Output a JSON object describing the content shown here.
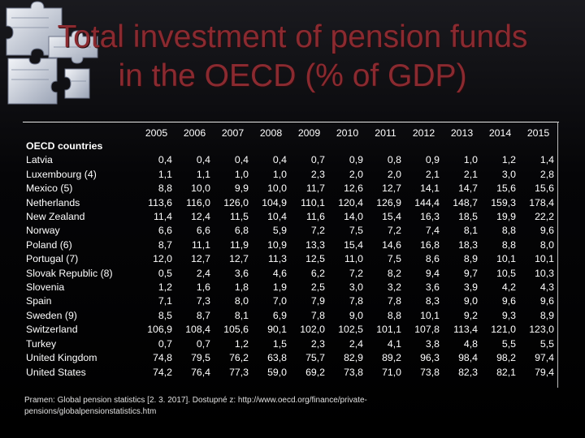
{
  "title": "Total investment of pension funds in the OECD (% of GDP)",
  "table": {
    "group_label": "OECD countries",
    "years": [
      "2005",
      "2006",
      "2007",
      "2008",
      "2009",
      "2010",
      "2011",
      "2012",
      "2013",
      "2014",
      "2015"
    ],
    "rows": [
      {
        "country": "Latvia",
        "values": [
          "0,4",
          "0,4",
          "0,4",
          "0,4",
          "0,7",
          "0,9",
          "0,8",
          "0,9",
          "1,0",
          "1,2",
          "1,4"
        ]
      },
      {
        "country": "Luxembourg (4)",
        "values": [
          "1,1",
          "1,1",
          "1,0",
          "1,0",
          "2,3",
          "2,0",
          "2,0",
          "2,1",
          "2,1",
          "3,0",
          "2,8"
        ]
      },
      {
        "country": "Mexico (5)",
        "values": [
          "8,8",
          "10,0",
          "9,9",
          "10,0",
          "11,7",
          "12,6",
          "12,7",
          "14,1",
          "14,7",
          "15,6",
          "15,6"
        ]
      },
      {
        "country": "Netherlands",
        "values": [
          "113,6",
          "116,0",
          "126,0",
          "104,9",
          "110,1",
          "120,4",
          "126,9",
          "144,4",
          "148,7",
          "159,3",
          "178,4"
        ]
      },
      {
        "country": "New Zealand",
        "values": [
          "11,4",
          "12,4",
          "11,5",
          "10,4",
          "11,6",
          "14,0",
          "15,4",
          "16,3",
          "18,5",
          "19,9",
          "22,2"
        ]
      },
      {
        "country": "Norway",
        "values": [
          "6,6",
          "6,6",
          "6,8",
          "5,9",
          "7,2",
          "7,5",
          "7,2",
          "7,4",
          "8,1",
          "8,8",
          "9,6"
        ]
      },
      {
        "country": "Poland (6)",
        "values": [
          "8,7",
          "11,1",
          "11,9",
          "10,9",
          "13,3",
          "15,4",
          "14,6",
          "16,8",
          "18,3",
          "8,8",
          "8,0"
        ]
      },
      {
        "country": "Portugal (7)",
        "values": [
          "12,0",
          "12,7",
          "12,7",
          "11,3",
          "12,5",
          "11,0",
          "7,5",
          "8,6",
          "8,9",
          "10,1",
          "10,1"
        ]
      },
      {
        "country": "Slovak Republic (8)",
        "values": [
          "0,5",
          "2,4",
          "3,6",
          "4,6",
          "6,2",
          "7,2",
          "8,2",
          "9,4",
          "9,7",
          "10,5",
          "10,3"
        ]
      },
      {
        "country": "Slovenia",
        "values": [
          "1,2",
          "1,6",
          "1,8",
          "1,9",
          "2,5",
          "3,0",
          "3,2",
          "3,6",
          "3,9",
          "4,2",
          "4,3"
        ]
      },
      {
        "country": "Spain",
        "values": [
          "7,1",
          "7,3",
          "8,0",
          "7,0",
          "7,9",
          "7,8",
          "7,8",
          "8,3",
          "9,0",
          "9,6",
          "9,6"
        ]
      },
      {
        "country": "Sweden (9)",
        "values": [
          "8,5",
          "8,7",
          "8,1",
          "6,9",
          "7,8",
          "9,0",
          "8,8",
          "10,1",
          "9,2",
          "9,3",
          "8,9"
        ]
      },
      {
        "country": "Switzerland",
        "values": [
          "106,9",
          "108,4",
          "105,6",
          "90,1",
          "102,0",
          "102,5",
          "101,1",
          "107,8",
          "113,4",
          "121,0",
          "123,0"
        ]
      },
      {
        "country": "Turkey",
        "values": [
          "0,7",
          "0,7",
          "1,2",
          "1,5",
          "2,3",
          "2,4",
          "4,1",
          "3,8",
          "4,8",
          "5,5",
          "5,5"
        ]
      },
      {
        "country": "United Kingdom",
        "values": [
          "74,8",
          "79,5",
          "76,2",
          "63,8",
          "75,7",
          "82,9",
          "89,2",
          "96,3",
          "98,4",
          "98,2",
          "97,4"
        ]
      },
      {
        "country": "United States",
        "values": [
          "74,2",
          "76,4",
          "77,3",
          "59,0",
          "69,2",
          "73,8",
          "71,0",
          "73,8",
          "82,3",
          "82,1",
          "79,4"
        ]
      }
    ]
  },
  "source_text": "Pramen: Global pension statistics [2. 3. 2017]. Dostupné z: http://www.oecd.org/finance/private-pensions/globalpensionstatistics.htm",
  "colors": {
    "title": "#8a2a30",
    "background": "#000000",
    "text": "#ffffff"
  },
  "decoration_icon": "puzzle-pieces-icon"
}
